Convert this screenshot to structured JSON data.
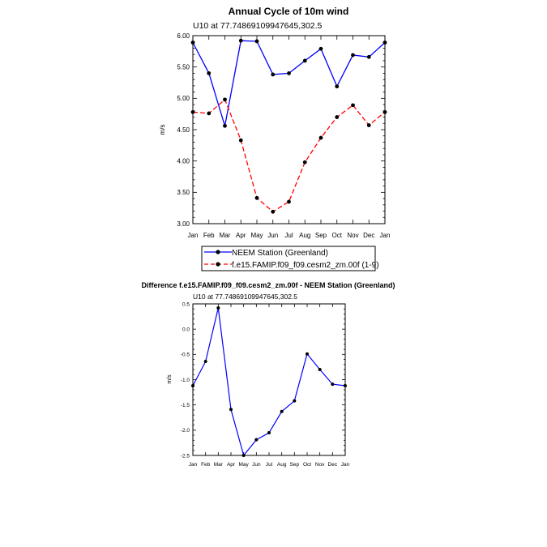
{
  "chart_data": [
    {
      "type": "line",
      "title": "Annual Cycle of 10m wind",
      "subtitle": "U10 at 77.74869109947645,302.5",
      "ylabel": "m/s",
      "xlabel": "",
      "ylim": [
        3.0,
        6.0
      ],
      "yticks": [
        "3.00",
        "3.50",
        "4.00",
        "4.50",
        "5.00",
        "5.50",
        "6.00"
      ],
      "ytick_values": [
        3.0,
        3.5,
        4.0,
        4.5,
        5.0,
        5.5,
        6.0
      ],
      "categories": [
        "Jan",
        "Feb",
        "Mar",
        "Apr",
        "May",
        "Jun",
        "Jul",
        "Aug",
        "Sep",
        "Oct",
        "Nov",
        "Dec",
        "Jan"
      ],
      "series": [
        {
          "name": "NEEM Station (Greenland)",
          "color": "#0000ff",
          "dash": "solid",
          "values": [
            5.89,
            5.4,
            4.56,
            5.92,
            5.91,
            5.38,
            5.4,
            5.6,
            5.79,
            5.19,
            5.69,
            5.66,
            5.89
          ]
        },
        {
          "name": "f.e15.FAMIP.f09_f09.cesm2_zm.00f (1-9)",
          "color": "#ff0000",
          "dash": "dashed",
          "values": [
            4.78,
            4.76,
            4.98,
            4.33,
            3.41,
            3.19,
            3.35,
            3.98,
            4.37,
            4.7,
            4.89,
            4.57,
            4.78
          ]
        }
      ],
      "legend_position": "bottom"
    },
    {
      "type": "line",
      "title": "Difference f.e15.FAMIP.f09_f09.cesm2_zm.00f - NEEM Station (Greenland)",
      "subtitle": "U10 at 77.74869109947645,302.5",
      "ylabel": "m/s",
      "xlabel": "",
      "ylim": [
        -2.5,
        0.5
      ],
      "yticks": [
        "-2.5",
        "-2.0",
        "-1.5",
        "-1.0",
        "-0.5",
        "0.0",
        "0.5"
      ],
      "ytick_values": [
        -2.5,
        -2.0,
        -1.5,
        -1.0,
        -0.5,
        0.0,
        0.5
      ],
      "categories": [
        "Jan",
        "Feb",
        "Mar",
        "Apr",
        "May",
        "Jun",
        "Jul",
        "Aug",
        "Sep",
        "Oct",
        "Nov",
        "Dec",
        "Jan"
      ],
      "series": [
        {
          "name": "Difference",
          "color": "#0000ff",
          "dash": "solid",
          "values": [
            -1.12,
            -0.64,
            0.42,
            -1.59,
            -2.5,
            -2.19,
            -2.05,
            -1.63,
            -1.42,
            -0.49,
            -0.8,
            -1.09,
            -1.12
          ]
        }
      ]
    }
  ]
}
